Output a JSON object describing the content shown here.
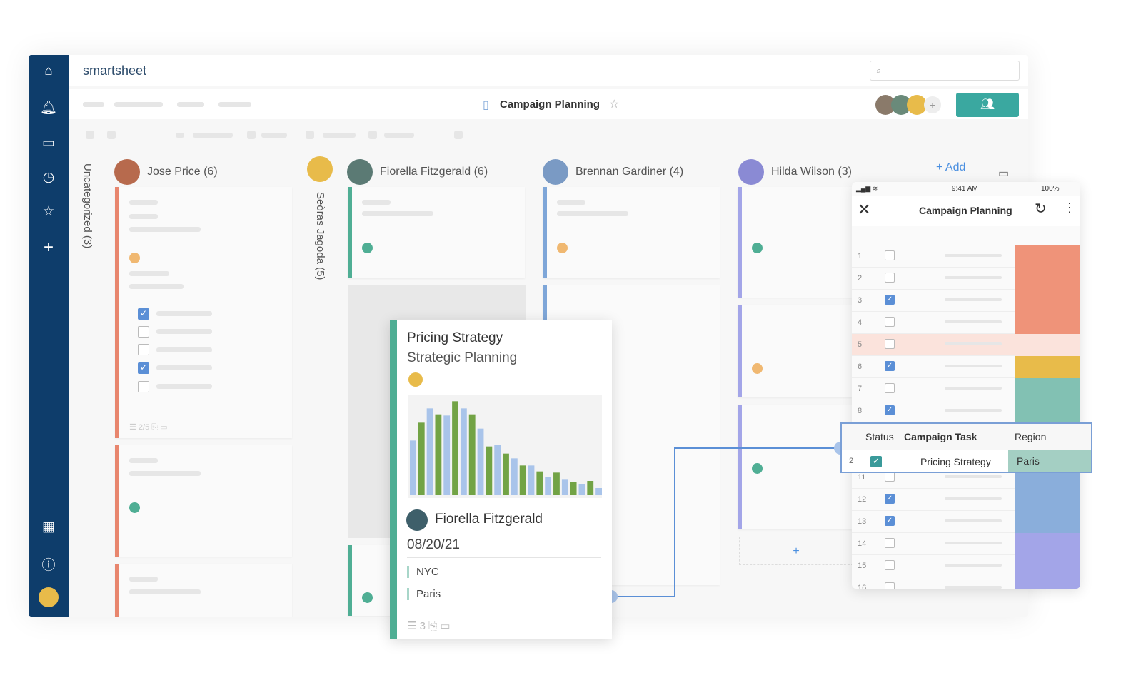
{
  "app": {
    "logo": "smartsheet",
    "sheet_title": "Campaign Planning",
    "add_label": "+ Add"
  },
  "colors": {
    "nav": "#0e3d6b",
    "orange": "#e8866e",
    "teal": "#4fae94",
    "blue": "#7ea6d8",
    "purple": "#a3a5e8",
    "yellow": "#e8bb4a",
    "share_button": "#3aa8a0"
  },
  "lanes": [
    {
      "label": "Uncategorized (3)"
    },
    {
      "label": "Jose Price (6)"
    },
    {
      "label": "Seòras Jagoda (5)"
    },
    {
      "label": "Fiorella Fitzgerald (6)"
    },
    {
      "label": "Brennan Gardiner (4)"
    },
    {
      "label": "Hilda Wilson (3)"
    }
  ],
  "jose_card": {
    "checklist_count": "2/5",
    "checks": [
      true,
      false,
      false,
      true,
      false
    ]
  },
  "popup_card": {
    "title": "Pricing Strategy",
    "subtitle": "Strategic Planning",
    "status_color": "#e8bb4a",
    "assignee": "Fiorella Fitzgerald",
    "date": "08/20/21",
    "tags": [
      "NYC",
      "Paris"
    ],
    "subtasks": "3",
    "chart": {
      "type": "bar",
      "values": [
        230,
        305,
        365,
        340,
        335,
        395,
        365,
        340,
        280,
        205,
        210,
        175,
        155,
        125,
        125,
        100,
        75,
        95,
        65,
        55,
        45,
        60,
        30
      ],
      "colors": [
        "#a9c4ea",
        "#72a345"
      ]
    }
  },
  "mobile": {
    "time": "9:41 AM",
    "battery": "100%",
    "title": "Campaign Planning",
    "rows": [
      {
        "n": "1",
        "checked": false,
        "region": "#ef9379"
      },
      {
        "n": "2",
        "checked": false,
        "region": "#ef9379"
      },
      {
        "n": "3",
        "checked": true,
        "region": "#ef9379"
      },
      {
        "n": "4",
        "checked": false,
        "region": "#ef9379"
      },
      {
        "n": "5",
        "checked": false,
        "region": "#fbe3dc"
      },
      {
        "n": "6",
        "checked": true,
        "region": "#e8bb4a"
      },
      {
        "n": "7",
        "checked": false,
        "region": "#82c1b3"
      },
      {
        "n": "8",
        "checked": true,
        "region": "#82c1b3"
      },
      {
        "n": "",
        "checked": false,
        "region": "#82c1b3"
      },
      {
        "n": "",
        "checked": false,
        "region": "#82c1b3"
      },
      {
        "n": "11",
        "checked": false,
        "region": "#8aaedb"
      },
      {
        "n": "12",
        "checked": true,
        "region": "#8aaedb"
      },
      {
        "n": "13",
        "checked": true,
        "region": "#8aaedb"
      },
      {
        "n": "14",
        "checked": false,
        "region": "#a3a5e8"
      },
      {
        "n": "15",
        "checked": false,
        "region": "#a3a5e8"
      },
      {
        "n": "16",
        "checked": false,
        "region": "#a3a5e8"
      }
    ]
  },
  "overlay": {
    "headers": [
      "Status",
      "Campaign Task",
      "Region"
    ],
    "row": {
      "n": "2",
      "checked": true,
      "task": "Pricing Strategy",
      "region": "Paris"
    }
  }
}
